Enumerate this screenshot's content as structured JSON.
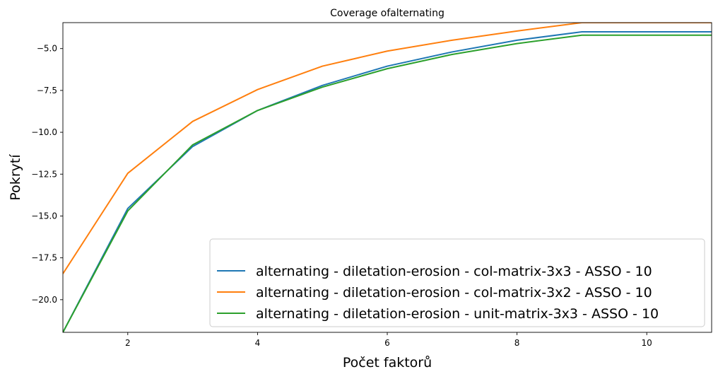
{
  "chart_data": {
    "type": "line",
    "title": "Coverage ofalternating",
    "xlabel": "Počet faktorů",
    "ylabel": "Pokrytí",
    "xlim": [
      1,
      11
    ],
    "ylim": [
      -21.95,
      -3.45
    ],
    "x_ticks": [
      2,
      4,
      6,
      8,
      10
    ],
    "y_ticks": [
      -5.0,
      -7.5,
      -10.0,
      -12.5,
      -15.0,
      -17.5,
      -20.0
    ],
    "x_tick_labels": [
      "2",
      "4",
      "6",
      "8",
      "10"
    ],
    "y_tick_labels": [
      "−5.0",
      "−7.5",
      "−10.0",
      "−12.5",
      "−15.0",
      "−17.5",
      "−20.0"
    ],
    "grid": false,
    "legend_position": "bottom-right",
    "x": [
      1,
      2,
      3,
      4,
      5,
      6,
      7,
      8,
      9,
      10,
      11
    ],
    "series": [
      {
        "name": "alternating - diletation-erosion - col-matrix-3x3 - ASSO - 10",
        "color": "#1f77b4",
        "values": [
          -21.95,
          -14.55,
          -10.85,
          -8.7,
          -7.2,
          -6.05,
          -5.2,
          -4.5,
          -4.0,
          -4.0,
          -4.0
        ]
      },
      {
        "name": "alternating - diletation-erosion - col-matrix-3x2 - ASSO - 10",
        "color": "#ff7f0e",
        "values": [
          -18.45,
          -12.45,
          -9.35,
          -7.45,
          -6.05,
          -5.15,
          -4.5,
          -3.95,
          -3.45,
          -3.45,
          -3.45
        ]
      },
      {
        "name": "alternating - diletation-erosion - unit-matrix-3x3 - ASSO - 10",
        "color": "#2ca02c",
        "values": [
          -21.95,
          -14.7,
          -10.75,
          -8.7,
          -7.3,
          -6.2,
          -5.35,
          -4.7,
          -4.2,
          -4.2,
          -4.2
        ]
      }
    ]
  }
}
